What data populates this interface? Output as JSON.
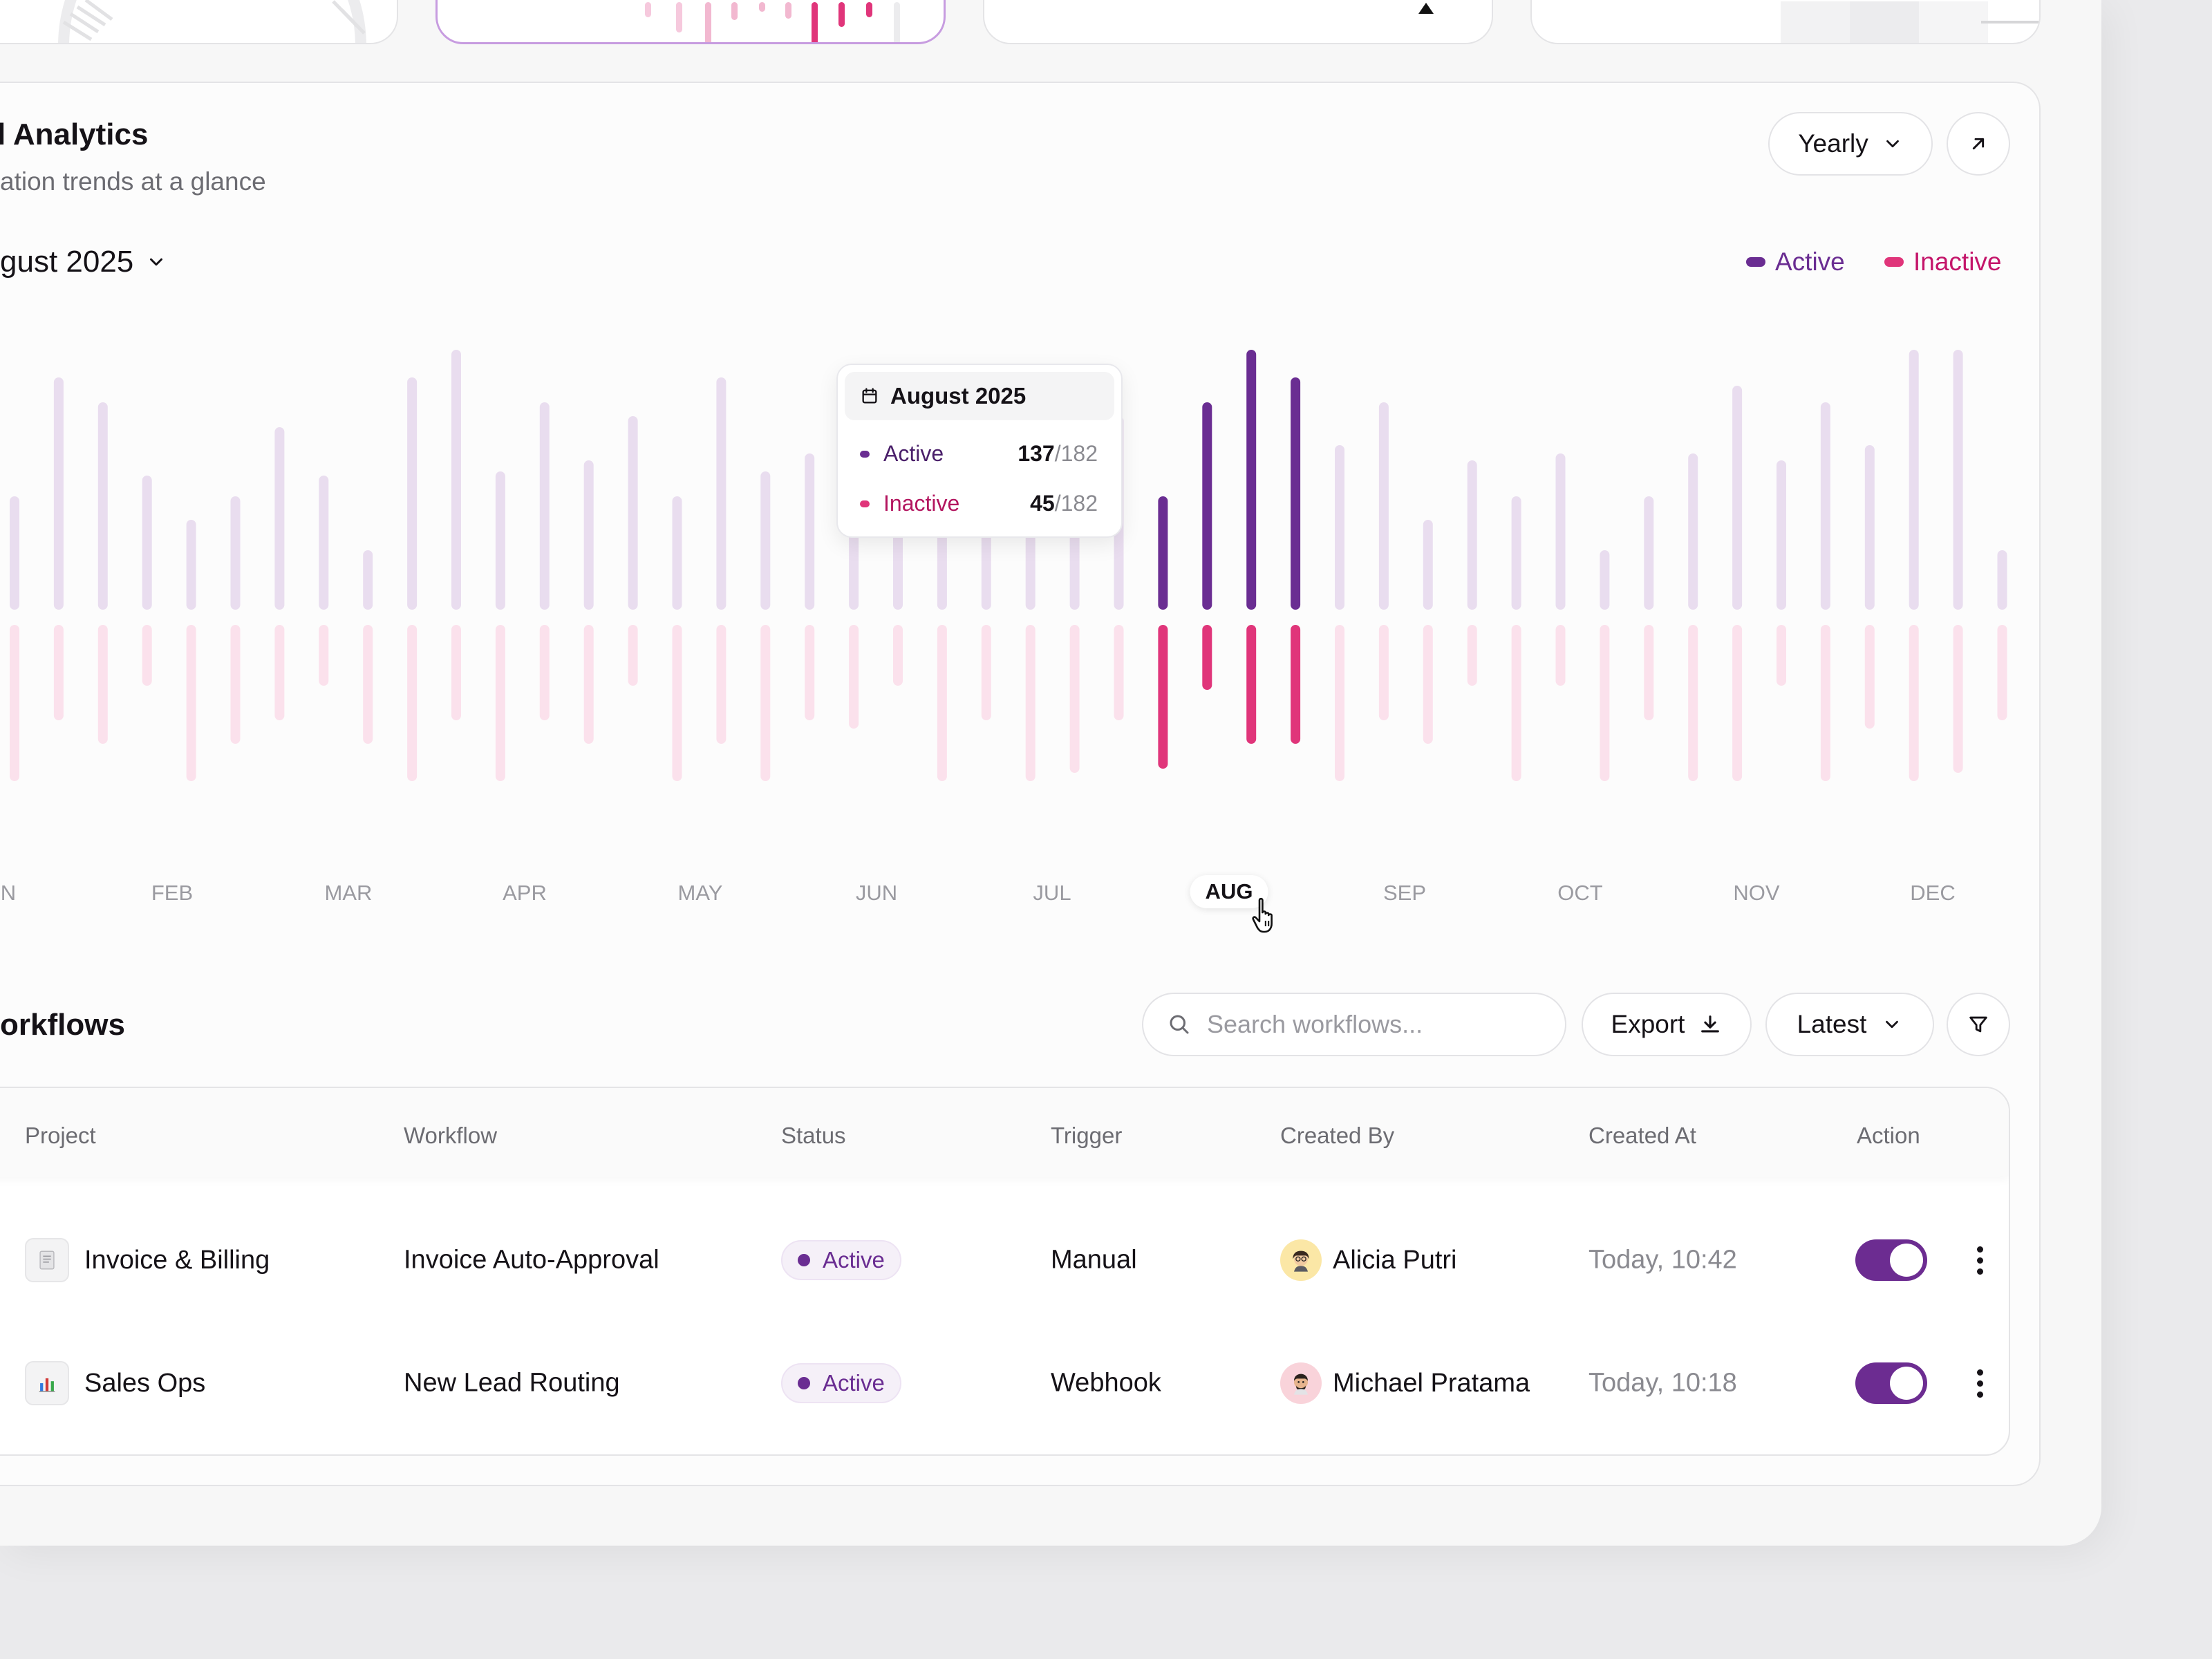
{
  "analytics": {
    "title": "l Analytics",
    "subtitle": "ation trends at a glance",
    "period_selector": "Yearly",
    "period_label": "gust 2025",
    "legend": {
      "active": "Active",
      "inactive": "Inactive",
      "active_color": "#6a2d92",
      "inactive_color": "#e0357a"
    },
    "tooltip": {
      "title": "August 2025",
      "active_label": "Active",
      "active_value": "137",
      "active_total": "/182",
      "inactive_label": "Inactive",
      "inactive_value": "45",
      "inactive_total": "/182"
    },
    "months": [
      "N",
      "FEB",
      "MAR",
      "APR",
      "MAY",
      "JUN",
      "JUL",
      "AUG",
      "SEP",
      "OCT",
      "NOV",
      "DEC"
    ],
    "active_month": "AUG"
  },
  "chart_data": {
    "type": "bar",
    "series": [
      {
        "name": "Active",
        "values": [
          82,
          168,
          150,
          97,
          65,
          82,
          132,
          97,
          43,
          168,
          188,
          100,
          150,
          108,
          140,
          82,
          168,
          100,
          113,
          100,
          108,
          97,
          92,
          100,
          65,
          140,
          82,
          150,
          188,
          168,
          119,
          150,
          65,
          108,
          82,
          113,
          43,
          82,
          113,
          162,
          108,
          150,
          119,
          188,
          188,
          43
        ]
      },
      {
        "name": "Inactive",
        "values": [
          113,
          69,
          86,
          44,
          113,
          86,
          69,
          44,
          86,
          113,
          69,
          113,
          69,
          86,
          44,
          113,
          86,
          113,
          69,
          75,
          44,
          113,
          69,
          113,
          107,
          69,
          104,
          47,
          86,
          86,
          113,
          69,
          86,
          44,
          113,
          44,
          113,
          69,
          113,
          113,
          44,
          113,
          75,
          113,
          107,
          69
        ]
      }
    ],
    "highlighted_bars": [
      26,
      27,
      28,
      29
    ]
  },
  "workflows": {
    "title": "orkflows",
    "search_placeholder": "Search workflows...",
    "export_label": "Export",
    "sort_label": "Latest",
    "columns": [
      "Project",
      "Workflow",
      "Status",
      "Trigger",
      "Created By",
      "Created At",
      "Action"
    ],
    "rows": [
      {
        "project": "Invoice & Billing",
        "project_icon": "document-icon",
        "workflow": "Invoice Auto-Approval",
        "status": "Active",
        "trigger": "Manual",
        "created_by": "Alicia Putri",
        "created_at": "Today, 10:42",
        "enabled": true
      },
      {
        "project": "Sales Ops",
        "project_icon": "bar-chart-icon",
        "workflow": "New Lead Routing",
        "status": "Active",
        "trigger": "Webhook",
        "created_by": "Michael Pratama",
        "created_at": "Today, 10:18",
        "enabled": true
      }
    ]
  }
}
